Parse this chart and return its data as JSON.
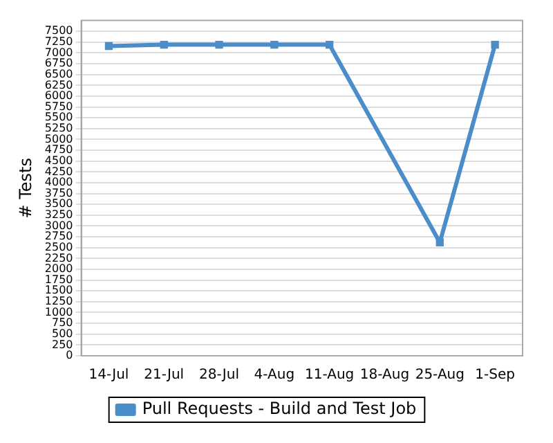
{
  "chart_data": {
    "type": "line",
    "ylabel": "# Tests",
    "categories": [
      "14-Jul",
      "21-Jul",
      "28-Jul",
      "4-Aug",
      "11-Aug",
      "18-Aug",
      "25-Aug",
      "1-Sep"
    ],
    "series": [
      {
        "name": "Pull Requests - Build and Test Job",
        "color": "#4a8dc8",
        "values": [
          7160,
          7190,
          7190,
          7190,
          7190,
          null,
          2620,
          7190
        ]
      }
    ],
    "ylim": [
      0,
      7750
    ],
    "yticks": [
      0,
      250,
      500,
      750,
      1000,
      1250,
      1500,
      1750,
      2000,
      2250,
      2500,
      2750,
      3000,
      3250,
      3500,
      3750,
      4000,
      4250,
      4500,
      4750,
      5000,
      5250,
      5500,
      5750,
      6000,
      6250,
      6500,
      6750,
      7000,
      7250,
      7500
    ],
    "grid": "y",
    "legend": "bottom",
    "marker": "square",
    "line_style": "solid"
  }
}
